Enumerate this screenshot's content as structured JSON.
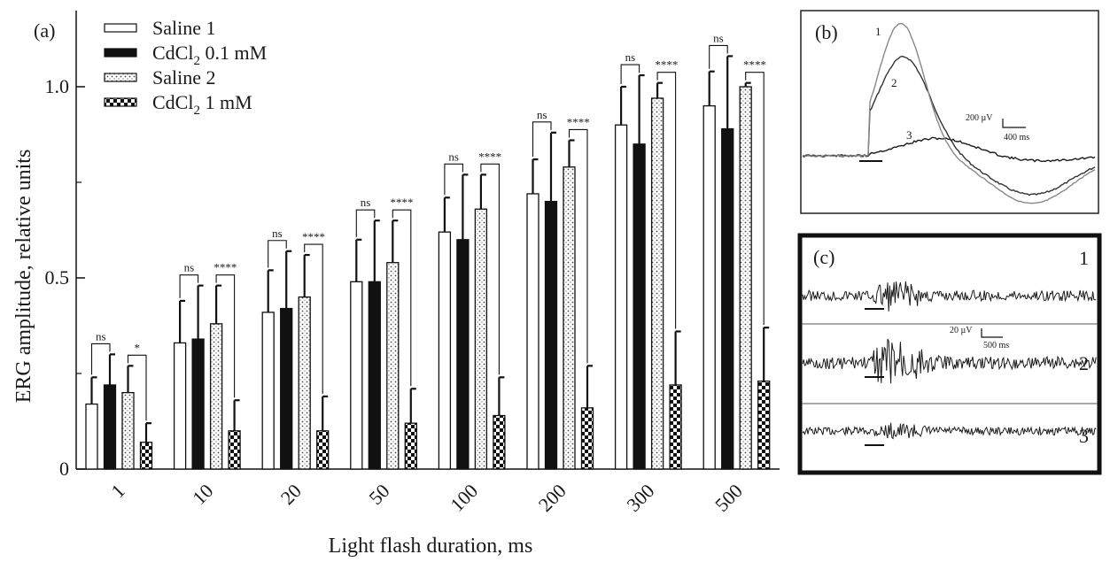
{
  "chart_data": {
    "type": "bar",
    "panel_label": "(a)",
    "xlabel": "Light flash duration, ms",
    "ylabel": "ERG amplitude, relative units",
    "ylim": [
      0,
      1.2
    ],
    "y_ticks": [
      0,
      0.5,
      1.0
    ],
    "y_tick_labels": [
      "0",
      "0.5",
      "1.0"
    ],
    "categories": [
      "1",
      "10",
      "20",
      "50",
      "100",
      "200",
      "300",
      "500"
    ],
    "series": [
      {
        "name": "Saline 1",
        "pattern": "open",
        "values": [
          0.17,
          0.33,
          0.41,
          0.49,
          0.62,
          0.72,
          0.9,
          0.95
        ],
        "errors": [
          0.07,
          0.11,
          0.11,
          0.11,
          0.09,
          0.09,
          0.1,
          0.09
        ]
      },
      {
        "name": "CdCl2 0.1 mM",
        "pattern": "solid",
        "values": [
          0.22,
          0.34,
          0.42,
          0.49,
          0.6,
          0.7,
          0.85,
          0.89
        ],
        "errors": [
          0.08,
          0.14,
          0.15,
          0.16,
          0.17,
          0.18,
          0.18,
          0.19
        ]
      },
      {
        "name": "Saline 2",
        "pattern": "dotted",
        "values": [
          0.2,
          0.38,
          0.45,
          0.54,
          0.68,
          0.79,
          0.97,
          1.0
        ],
        "errors": [
          0.07,
          0.1,
          0.11,
          0.11,
          0.09,
          0.07,
          0.04,
          0.01
        ]
      },
      {
        "name": "CdCl2 1 mM",
        "pattern": "checker",
        "values": [
          0.07,
          0.1,
          0.1,
          0.12,
          0.14,
          0.16,
          0.22,
          0.23
        ],
        "errors": [
          0.05,
          0.08,
          0.09,
          0.09,
          0.1,
          0.11,
          0.14,
          0.14
        ]
      }
    ],
    "significance": [
      {
        "ns": "ns",
        "stars": "*"
      },
      {
        "ns": "ns",
        "stars": "****"
      },
      {
        "ns": "ns",
        "stars": "****"
      },
      {
        "ns": "ns",
        "stars": "****"
      },
      {
        "ns": "ns",
        "stars": "****"
      },
      {
        "ns": "ns",
        "stars": "****"
      },
      {
        "ns": "ns",
        "stars": "****"
      },
      {
        "ns": "ns",
        "stars": "****"
      }
    ]
  },
  "inset_b": {
    "label": "(b)",
    "trace_labels": [
      "1",
      "2",
      "3"
    ],
    "scale_voltage": "200 µV",
    "scale_time": "400 ms",
    "trace_colors": [
      "#888888",
      "#333333",
      "#1a1a1a"
    ]
  },
  "inset_c": {
    "label": "(c)",
    "trace_labels": [
      "1",
      "2",
      "3"
    ],
    "scale_voltage": "20 µV",
    "scale_time": "500 ms"
  }
}
